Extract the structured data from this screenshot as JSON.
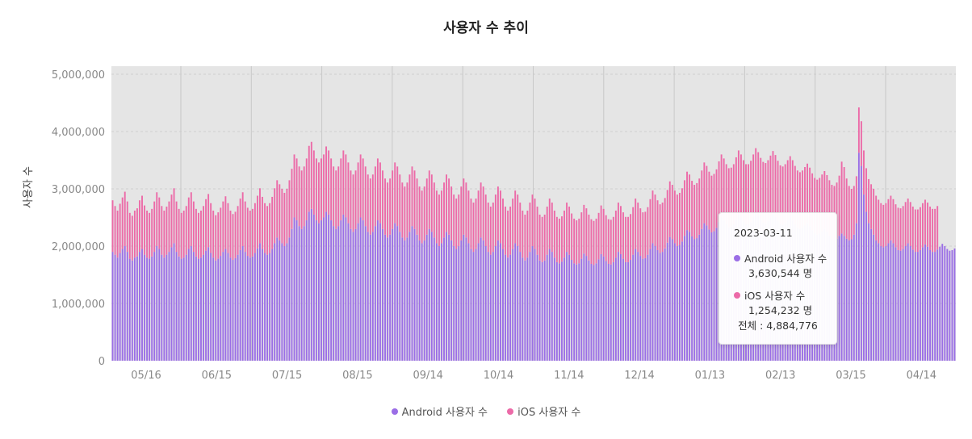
{
  "title": "사용자 수 추이",
  "ylabel": "사용자 수",
  "colors": {
    "android": "#9b6ee6",
    "ios": "#ec6aa8",
    "plot_bg": "#e5e5e5"
  },
  "legend": [
    {
      "name": "Android 사용자 수",
      "color": "#9b6ee6"
    },
    {
      "name": "iOS 사용자 수",
      "color": "#ec6aa8"
    }
  ],
  "tooltip": {
    "date": "2023-03-11",
    "android_label": "Android 사용자 수",
    "android_value": "3,630,544 명",
    "ios_label": "iOS 사용자 수",
    "ios_value": "1,254,232 명",
    "total": "전체 : 4,884,776"
  },
  "chart_data": {
    "type": "bar",
    "stacked": true,
    "title": "사용자 수 추이",
    "xlabel": "",
    "ylabel": "사용자 수",
    "ylim": [
      0,
      5000000
    ],
    "yticks": [
      "5,000,000",
      "4,000,000",
      "3,000,000",
      "2,000,000",
      "1,000,000",
      "0"
    ],
    "xticks": [
      "05/16",
      "06/15",
      "07/15",
      "08/15",
      "09/14",
      "10/14",
      "11/14",
      "12/14",
      "01/13",
      "02/13",
      "03/15",
      "04/14"
    ],
    "grid": true,
    "legend_position": "bottom",
    "note": "Daily stacked bars; values approximated per week-day pattern",
    "series": [
      {
        "name": "Android 사용자 수",
        "values": [
          1900000,
          1850000,
          1800000,
          1880000,
          1950000,
          2000000,
          1900000,
          1780000,
          1750000,
          1800000,
          1820000,
          1900000,
          1950000,
          1850000,
          1800000,
          1780000,
          1820000,
          1900000,
          2000000,
          1950000,
          1850000,
          1800000,
          1850000,
          1900000,
          1980000,
          2050000,
          1900000,
          1820000,
          1780000,
          1800000,
          1850000,
          1950000,
          2000000,
          1900000,
          1820000,
          1780000,
          1800000,
          1850000,
          1920000,
          1980000,
          1880000,
          1800000,
          1750000,
          1780000,
          1830000,
          1900000,
          1950000,
          1880000,
          1800000,
          1760000,
          1790000,
          1850000,
          1930000,
          2000000,
          1900000,
          1830000,
          1800000,
          1820000,
          1880000,
          1960000,
          2050000,
          1950000,
          1880000,
          1850000,
          1880000,
          1950000,
          2050000,
          2150000,
          2100000,
          2050000,
          2000000,
          2050000,
          2150000,
          2300000,
          2500000,
          2450000,
          2350000,
          2300000,
          2350000,
          2450000,
          2600000,
          2650000,
          2550000,
          2450000,
          2400000,
          2450000,
          2500000,
          2600000,
          2550000,
          2450000,
          2350000,
          2300000,
          2350000,
          2450000,
          2550000,
          2500000,
          2400000,
          2300000,
          2250000,
          2300000,
          2400000,
          2500000,
          2450000,
          2350000,
          2250000,
          2200000,
          2250000,
          2350000,
          2450000,
          2400000,
          2300000,
          2200000,
          2150000,
          2200000,
          2300000,
          2400000,
          2350000,
          2250000,
          2150000,
          2100000,
          2150000,
          2250000,
          2350000,
          2300000,
          2200000,
          2100000,
          2050000,
          2100000,
          2200000,
          2300000,
          2250000,
          2150000,
          2050000,
          2000000,
          2050000,
          2150000,
          2250000,
          2200000,
          2100000,
          2000000,
          1950000,
          2000000,
          2100000,
          2200000,
          2150000,
          2050000,
          1950000,
          1900000,
          1950000,
          2050000,
          2150000,
          2100000,
          2000000,
          1900000,
          1850000,
          1900000,
          2000000,
          2100000,
          2050000,
          1950000,
          1850000,
          1800000,
          1850000,
          1950000,
          2050000,
          2000000,
          1900000,
          1800000,
          1750000,
          1800000,
          1900000,
          2000000,
          1950000,
          1850000,
          1750000,
          1720000,
          1750000,
          1850000,
          1950000,
          1900000,
          1800000,
          1720000,
          1700000,
          1730000,
          1800000,
          1900000,
          1850000,
          1760000,
          1700000,
          1680000,
          1700000,
          1780000,
          1870000,
          1830000,
          1750000,
          1690000,
          1670000,
          1700000,
          1770000,
          1860000,
          1820000,
          1740000,
          1690000,
          1680000,
          1720000,
          1800000,
          1900000,
          1860000,
          1780000,
          1720000,
          1720000,
          1760000,
          1850000,
          1950000,
          1900000,
          1830000,
          1780000,
          1790000,
          1850000,
          1950000,
          2050000,
          2000000,
          1930000,
          1880000,
          1900000,
          1960000,
          2060000,
          2160000,
          2120000,
          2050000,
          2000000,
          2020000,
          2080000,
          2180000,
          2280000,
          2250000,
          2170000,
          2120000,
          2140000,
          2200000,
          2300000,
          2400000,
          2360000,
          2290000,
          2240000,
          2260000,
          2320000,
          2420000,
          2500000,
          2450000,
          2380000,
          2330000,
          2340000,
          2380000,
          2470000,
          2550000,
          2500000,
          2430000,
          2380000,
          2380000,
          2420000,
          2500000,
          2580000,
          2530000,
          2460000,
          2410000,
          2400000,
          2440000,
          2500000,
          2560000,
          2510000,
          2440000,
          2380000,
          2370000,
          2400000,
          2450000,
          2500000,
          2450000,
          2380000,
          2320000,
          2300000,
          2320000,
          2360000,
          2400000,
          2350000,
          2280000,
          2220000,
          2200000,
          2220000,
          2260000,
          2300000,
          2250000,
          2180000,
          2120000,
          2100000,
          2130000,
          2180000,
          2220000,
          2180000,
          2130000,
          2100000,
          2120000,
          2200000,
          2400000,
          3630544,
          3400000,
          2900000,
          2600000,
          2400000,
          2300000,
          2200000,
          2100000,
          2050000,
          2000000,
          1980000,
          2000000,
          2050000,
          2100000,
          2050000,
          1980000,
          1930000,
          1920000,
          1950000,
          2000000,
          2050000,
          2000000,
          1940000,
          1900000,
          1900000,
          1930000,
          1980000,
          2030000,
          1990000,
          1930000,
          1900000,
          1900000,
          1940000,
          1990000,
          2040000,
          2000000,
          1950000,
          1920000,
          1930000,
          1960000
        ]
      },
      {
        "name": "iOS 사용자 수",
        "values": [
          900000,
          850000,
          820000,
          860000,
          900000,
          950000,
          880000,
          800000,
          780000,
          820000,
          840000,
          900000,
          930000,
          860000,
          820000,
          800000,
          830000,
          880000,
          940000,
          900000,
          850000,
          820000,
          840000,
          880000,
          920000,
          960000,
          880000,
          830000,
          800000,
          820000,
          850000,
          900000,
          940000,
          880000,
          830000,
          800000,
          820000,
          850000,
          900000,
          930000,
          870000,
          820000,
          790000,
          810000,
          840000,
          880000,
          920000,
          870000,
          820000,
          800000,
          810000,
          850000,
          900000,
          940000,
          880000,
          840000,
          820000,
          830000,
          870000,
          920000,
          960000,
          910000,
          870000,
          850000,
          870000,
          910000,
          960000,
          1000000,
          980000,
          950000,
          930000,
          950000,
          1000000,
          1050000,
          1100000,
          1080000,
          1040000,
          1020000,
          1040000,
          1080000,
          1150000,
          1170000,
          1120000,
          1080000,
          1060000,
          1080000,
          1100000,
          1140000,
          1120000,
          1080000,
          1040000,
          1020000,
          1040000,
          1080000,
          1120000,
          1100000,
          1060000,
          1020000,
          1000000,
          1020000,
          1060000,
          1100000,
          1080000,
          1040000,
          1000000,
          980000,
          1000000,
          1040000,
          1080000,
          1060000,
          1020000,
          980000,
          960000,
          980000,
          1020000,
          1060000,
          1040000,
          1000000,
          960000,
          940000,
          960000,
          1000000,
          1040000,
          1020000,
          980000,
          940000,
          920000,
          940000,
          980000,
          1020000,
          1000000,
          960000,
          920000,
          900000,
          920000,
          960000,
          1000000,
          980000,
          940000,
          900000,
          880000,
          900000,
          940000,
          980000,
          960000,
          920000,
          880000,
          860000,
          880000,
          920000,
          960000,
          940000,
          900000,
          860000,
          840000,
          860000,
          900000,
          940000,
          920000,
          880000,
          840000,
          820000,
          840000,
          880000,
          920000,
          900000,
          860000,
          820000,
          800000,
          820000,
          860000,
          900000,
          880000,
          840000,
          800000,
          790000,
          800000,
          840000,
          880000,
          860000,
          820000,
          790000,
          780000,
          790000,
          820000,
          860000,
          840000,
          810000,
          780000,
          770000,
          780000,
          810000,
          850000,
          830000,
          800000,
          780000,
          770000,
          780000,
          810000,
          850000,
          830000,
          800000,
          780000,
          780000,
          790000,
          820000,
          860000,
          840000,
          810000,
          790000,
          790000,
          800000,
          830000,
          880000,
          860000,
          830000,
          810000,
          810000,
          830000,
          870000,
          920000,
          900000,
          870000,
          850000,
          860000,
          880000,
          920000,
          970000,
          950000,
          920000,
          900000,
          910000,
          930000,
          970000,
          1020000,
          1000000,
          970000,
          950000,
          960000,
          980000,
          1020000,
          1060000,
          1040000,
          1010000,
          990000,
          1000000,
          1020000,
          1060000,
          1100000,
          1080000,
          1050000,
          1030000,
          1030000,
          1050000,
          1080000,
          1120000,
          1100000,
          1070000,
          1050000,
          1050000,
          1070000,
          1100000,
          1130000,
          1110000,
          1080000,
          1060000,
          1050000,
          1060000,
          1080000,
          1100000,
          1080000,
          1050000,
          1030000,
          1020000,
          1030000,
          1050000,
          1070000,
          1050000,
          1020000,
          1000000,
          990000,
          1000000,
          1020000,
          1040000,
          1020000,
          990000,
          970000,
          960000,
          970000,
          990000,
          1010000,
          990000,
          970000,
          950000,
          950000,
          980000,
          1050000,
          1254232,
          1200000,
          1050000,
          950000,
          880000,
          850000,
          820000,
          790000,
          780000,
          770000,
          760000,
          770000,
          780000,
          800000,
          780000,
          760000,
          750000,
          740000,
          750000,
          770000,
          780000,
          770000,
          750000,
          740000,
          740000,
          750000,
          770000,
          780000,
          770000,
          750000,
          740000,
          740000,
          750000,
          770000,
          780000,
          770000,
          760000,
          750000,
          750000,
          760000
        ]
      }
    ]
  }
}
